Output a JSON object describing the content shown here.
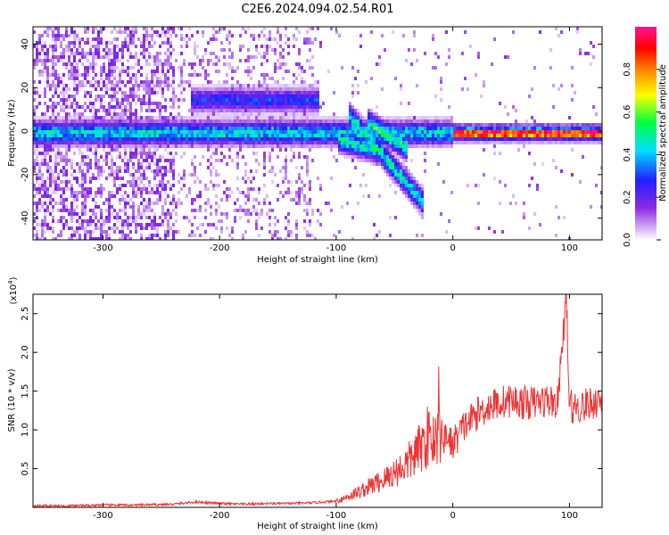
{
  "title": "C2E6.2024.094.02.54.R01",
  "chart_data": [
    {
      "type": "heatmap",
      "xlabel": "Height of straight line (km)",
      "ylabel": "Frequency (Hz)",
      "xlim": [
        -360,
        128
      ],
      "ylim": [
        -50,
        48
      ],
      "xticks": [
        -300,
        -200,
        -100,
        0,
        100
      ],
      "xtick_labels": [
        "-300",
        "-200",
        "-100",
        "0",
        "100"
      ],
      "yticks": [
        -40,
        -20,
        0,
        20,
        40
      ],
      "ytick_labels": [
        "-40",
        "-20",
        "0",
        "20",
        "40"
      ],
      "colorbar": {
        "label": "Normalized spectral amplitude",
        "range": [
          0,
          1
        ],
        "ticks": [
          0,
          0.2,
          0.4,
          0.6,
          0.8
        ],
        "tick_labels": [
          "0.0",
          "0.2",
          "0.4",
          "0.6",
          "0.8"
        ],
        "colormap": [
          "#ffffff",
          "#cfa8f5",
          "#8a2be2",
          "#2020ff",
          "#00e0ff",
          "#00ff40",
          "#ffff00",
          "#ff8000",
          "#ff0000",
          "#ff1493"
        ]
      },
      "features": [
        {
          "name": "carrier line",
          "x_range": [
            -360,
            128
          ],
          "freq": 0,
          "amplitude": 0.45
        },
        {
          "name": "descending branch",
          "x_range": [
            -90,
            -25
          ],
          "freq_range": [
            8,
            -33
          ],
          "amplitude": 0.5
        },
        {
          "name": "sideband",
          "x_range": [
            -220,
            -120
          ],
          "freq": 15,
          "amplitude": 0.3
        }
      ],
      "grid": false
    },
    {
      "type": "line",
      "xlabel": "Height of straight line (km)",
      "ylabel": "SNR (10 * v/v)",
      "y_scale_label": "(x10",
      "y_scale_exp": "4",
      "y_scale_suffix": ")",
      "xlim": [
        -360,
        128
      ],
      "ylim": [
        0,
        2.75
      ],
      "xticks": [
        -300,
        -200,
        -100,
        0,
        100
      ],
      "xtick_labels": [
        "-300",
        "-200",
        "-100",
        "0",
        "100"
      ],
      "yticks": [
        0.5,
        1.0,
        1.5,
        2.0,
        2.5
      ],
      "ytick_labels": [
        "0.5",
        "1.0",
        "1.5",
        "2.0",
        "2.5"
      ],
      "color": "#ee3333",
      "series": [
        {
          "x": [
            -360,
            -330,
            -300,
            -270,
            -240,
            -220,
            -200,
            -180,
            -160,
            -140,
            -120,
            -100,
            -90,
            -80,
            -70,
            -60,
            -50,
            -40,
            -30,
            -20,
            -10,
            0,
            10,
            20,
            30,
            40,
            50,
            60,
            70,
            80,
            90,
            97,
            100,
            110,
            120,
            128
          ],
          "values": [
            0.02,
            0.02,
            0.03,
            0.03,
            0.04,
            0.07,
            0.05,
            0.04,
            0.05,
            0.05,
            0.06,
            0.08,
            0.14,
            0.2,
            0.28,
            0.35,
            0.45,
            0.55,
            0.72,
            0.95,
            0.92,
            0.82,
            1.05,
            1.2,
            1.3,
            1.35,
            1.38,
            1.35,
            1.35,
            1.38,
            1.35,
            2.7,
            1.3,
            1.3,
            1.35,
            1.4
          ]
        }
      ]
    }
  ]
}
